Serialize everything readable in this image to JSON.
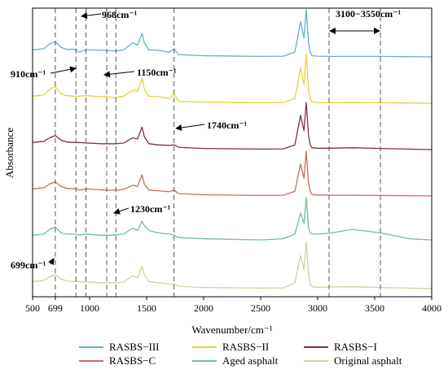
{
  "chart_data": {
    "type": "line",
    "xlabel": "Wavenumber/cm⁻¹",
    "ylabel": "Absorbance",
    "xlim": [
      500,
      4000
    ],
    "x_ticks": [
      500,
      699,
      1000,
      1500,
      2000,
      2500,
      3000,
      3500,
      4000
    ],
    "x_tick_labels": [
      "500",
      "699",
      "1000",
      "1500",
      "2000",
      "2500",
      "3000",
      "3500",
      "4000"
    ],
    "grid": false,
    "legend_position": "bottom",
    "reference_lines": [
      699,
      880,
      968,
      1150,
      1230,
      1740,
      3100,
      3550
    ],
    "annotations": [
      {
        "text": "968cm⁻¹",
        "x": 968
      },
      {
        "text": "910cm⁻¹",
        "x": 910
      },
      {
        "text": "1150cm⁻¹",
        "x": 1150
      },
      {
        "text": "1740cm⁻¹",
        "x": 1740
      },
      {
        "text": "1230cm⁻¹",
        "x": 1230
      },
      {
        "text": "699cm⁻¹",
        "x": 699
      },
      {
        "text": "3100−3550cm⁻¹",
        "x": [
          3100,
          3550
        ]
      }
    ],
    "series": [
      {
        "name": "RASBS−III",
        "color": "#6aaec6",
        "offset": 5,
        "x": [
          500,
          600,
          650,
          699,
          750,
          800,
          880,
          910,
          968,
          1030,
          1100,
          1150,
          1200,
          1230,
          1300,
          1375,
          1420,
          1460,
          1480,
          1520,
          1600,
          1700,
          1740,
          1780,
          2000,
          2500,
          2700,
          2800,
          2850,
          2880,
          2900,
          2920,
          2935,
          2950,
          3000,
          3100,
          3300,
          3550,
          3800,
          4000
        ],
        "y": [
          0.3,
          0.35,
          0.55,
          0.65,
          0.4,
          0.32,
          0.32,
          0.2,
          0.3,
          0.3,
          0.28,
          0.28,
          0.26,
          0.25,
          0.3,
          0.6,
          0.5,
          1.0,
          0.6,
          0.3,
          0.28,
          0.2,
          0.35,
          0.1,
          0.05,
          0.02,
          0.03,
          0.2,
          1.5,
          0.8,
          2.0,
          0.6,
          0.2,
          0.05,
          0.03,
          0.02,
          0.02,
          0.02,
          0.01,
          0.0
        ]
      },
      {
        "name": "RASBS−II",
        "color": "#e0d43a",
        "offset": 4,
        "x": [
          500,
          600,
          650,
          699,
          750,
          800,
          880,
          910,
          968,
          1030,
          1100,
          1150,
          1200,
          1230,
          1300,
          1375,
          1420,
          1460,
          1480,
          1520,
          1600,
          1700,
          1740,
          1780,
          2000,
          2500,
          2700,
          2800,
          2850,
          2880,
          2900,
          2920,
          2935,
          2950,
          3000,
          3100,
          3300,
          3550,
          3800,
          4000
        ],
        "y": [
          0.3,
          0.35,
          0.6,
          0.7,
          0.4,
          0.32,
          0.3,
          0.3,
          0.32,
          0.3,
          0.28,
          0.28,
          0.25,
          0.25,
          0.3,
          0.55,
          0.5,
          1.05,
          0.6,
          0.3,
          0.28,
          0.2,
          0.4,
          0.08,
          0.05,
          0.02,
          0.03,
          0.2,
          1.5,
          0.8,
          2.1,
          0.6,
          0.2,
          0.05,
          0.03,
          0.02,
          0.03,
          0.02,
          0.01,
          0.0
        ]
      },
      {
        "name": "RASBS−I",
        "color": "#7b3340",
        "offset": 3,
        "x": [
          500,
          600,
          650,
          699,
          750,
          800,
          880,
          910,
          968,
          1030,
          1100,
          1150,
          1200,
          1230,
          1300,
          1375,
          1420,
          1460,
          1480,
          1520,
          1600,
          1700,
          1740,
          1780,
          2000,
          2500,
          2700,
          2800,
          2850,
          2880,
          2900,
          2920,
          2935,
          2950,
          3000,
          3100,
          3300,
          3550,
          3800,
          4000
        ],
        "y": [
          0.3,
          0.35,
          0.5,
          0.6,
          0.4,
          0.32,
          0.3,
          0.3,
          0.28,
          0.27,
          0.25,
          0.25,
          0.25,
          0.25,
          0.28,
          0.5,
          0.45,
          0.95,
          0.55,
          0.25,
          0.2,
          0.18,
          0.2,
          0.1,
          0.05,
          0.02,
          0.03,
          0.2,
          1.45,
          0.8,
          2.0,
          0.6,
          0.2,
          0.08,
          0.06,
          0.06,
          0.08,
          0.05,
          0.02,
          0.0
        ]
      },
      {
        "name": "RASBS−C",
        "color": "#cd6a5e",
        "offset": 2,
        "x": [
          500,
          600,
          650,
          699,
          750,
          800,
          880,
          910,
          968,
          1030,
          1100,
          1150,
          1200,
          1230,
          1300,
          1375,
          1420,
          1460,
          1480,
          1520,
          1600,
          1700,
          1740,
          1780,
          2000,
          2500,
          2700,
          2800,
          2850,
          2880,
          2900,
          2920,
          2935,
          2950,
          3000,
          3100,
          3300,
          3550,
          3800,
          4000
        ],
        "y": [
          0.3,
          0.35,
          0.5,
          0.6,
          0.4,
          0.32,
          0.3,
          0.25,
          0.3,
          0.28,
          0.26,
          0.25,
          0.24,
          0.24,
          0.28,
          0.45,
          0.4,
          0.9,
          0.5,
          0.25,
          0.22,
          0.18,
          0.25,
          0.1,
          0.05,
          0.02,
          0.03,
          0.2,
          1.35,
          0.75,
          1.9,
          0.55,
          0.2,
          0.06,
          0.04,
          0.03,
          0.03,
          0.02,
          0.01,
          0.0
        ]
      },
      {
        "name": "Aged asphalt",
        "color": "#73bf96",
        "offset": 1,
        "x": [
          500,
          600,
          650,
          699,
          750,
          800,
          880,
          910,
          968,
          1030,
          1100,
          1150,
          1200,
          1230,
          1300,
          1375,
          1420,
          1460,
          1480,
          1520,
          1600,
          1700,
          1740,
          1780,
          2000,
          2500,
          2700,
          2800,
          2850,
          2880,
          2900,
          2920,
          2935,
          2950,
          3000,
          3100,
          3300,
          3550,
          3800,
          4000
        ],
        "y": [
          0.3,
          0.35,
          0.55,
          0.65,
          0.4,
          0.35,
          0.35,
          0.3,
          0.35,
          0.32,
          0.3,
          0.3,
          0.3,
          0.32,
          0.35,
          0.6,
          0.5,
          0.9,
          0.7,
          0.5,
          0.4,
          0.35,
          0.3,
          0.2,
          0.15,
          0.1,
          0.15,
          0.35,
          1.25,
          0.8,
          1.9,
          0.6,
          0.4,
          0.35,
          0.35,
          0.38,
          0.55,
          0.4,
          0.15,
          0.1
        ]
      },
      {
        "name": "Original asphalt",
        "color": "#c5d6a0",
        "offset": 0,
        "x": [
          500,
          600,
          650,
          699,
          750,
          800,
          880,
          910,
          968,
          1030,
          1100,
          1150,
          1200,
          1230,
          1300,
          1375,
          1420,
          1460,
          1480,
          1520,
          1600,
          1700,
          1740,
          1780,
          2000,
          2500,
          2700,
          2800,
          2850,
          2880,
          2900,
          2920,
          2935,
          2950,
          3000,
          3100,
          3300,
          3550,
          3800,
          4000
        ],
        "y": [
          0.3,
          0.35,
          0.5,
          0.6,
          0.4,
          0.33,
          0.3,
          0.3,
          0.28,
          0.27,
          0.25,
          0.25,
          0.25,
          0.25,
          0.28,
          0.55,
          0.45,
          0.95,
          0.6,
          0.3,
          0.25,
          0.2,
          0.2,
          0.1,
          0.05,
          0.02,
          0.03,
          0.25,
          1.4,
          0.8,
          2.0,
          0.6,
          0.2,
          0.08,
          0.06,
          0.07,
          0.08,
          0.05,
          0.02,
          0.0
        ]
      }
    ]
  }
}
